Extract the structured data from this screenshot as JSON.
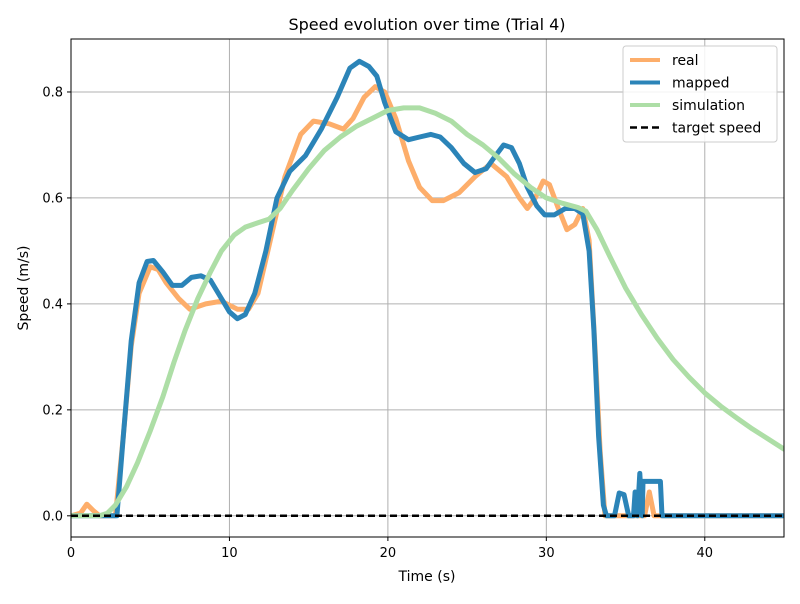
{
  "chart_data": {
    "type": "line",
    "title": "Speed evolution over time (Trial 4)",
    "xlabel": "Time (s)",
    "ylabel": "Speed (m/s)",
    "xlim": [
      0,
      45
    ],
    "ylim": [
      -0.04,
      0.9
    ],
    "x_ticks": [
      0,
      10,
      20,
      30,
      40
    ],
    "y_ticks": [
      0.0,
      0.2,
      0.4,
      0.6,
      0.8
    ],
    "x_tick_labels": [
      "0",
      "10",
      "20",
      "30",
      "40"
    ],
    "y_tick_labels": [
      "0.0",
      "0.2",
      "0.4",
      "0.6",
      "0.8"
    ],
    "grid": true,
    "legend_position": "top-right",
    "series": [
      {
        "name": "real",
        "color": "#fdae6b",
        "points": [
          [
            0,
            0
          ],
          [
            0.6,
            0.005
          ],
          [
            1.0,
            0.022
          ],
          [
            1.4,
            0.01
          ],
          [
            1.8,
            0.0
          ],
          [
            2.8,
            0.0
          ],
          [
            3.3,
            0.15
          ],
          [
            3.8,
            0.32
          ],
          [
            4.3,
            0.42
          ],
          [
            5.0,
            0.47
          ],
          [
            5.5,
            0.465
          ],
          [
            6.0,
            0.44
          ],
          [
            6.8,
            0.41
          ],
          [
            7.5,
            0.39
          ],
          [
            8.5,
            0.4
          ],
          [
            9.5,
            0.405
          ],
          [
            10.5,
            0.39
          ],
          [
            11.2,
            0.39
          ],
          [
            11.8,
            0.42
          ],
          [
            12.5,
            0.51
          ],
          [
            13.5,
            0.64
          ],
          [
            14.5,
            0.72
          ],
          [
            15.3,
            0.745
          ],
          [
            16.3,
            0.74
          ],
          [
            17.2,
            0.73
          ],
          [
            17.8,
            0.75
          ],
          [
            18.5,
            0.79
          ],
          [
            19.2,
            0.81
          ],
          [
            19.8,
            0.8
          ],
          [
            20.5,
            0.75
          ],
          [
            21.3,
            0.67
          ],
          [
            22.0,
            0.62
          ],
          [
            22.8,
            0.595
          ],
          [
            23.5,
            0.595
          ],
          [
            24.5,
            0.61
          ],
          [
            25.5,
            0.64
          ],
          [
            26.5,
            0.665
          ],
          [
            27.5,
            0.64
          ],
          [
            28.3,
            0.6
          ],
          [
            28.8,
            0.58
          ],
          [
            29.3,
            0.6
          ],
          [
            29.8,
            0.632
          ],
          [
            30.2,
            0.625
          ],
          [
            30.7,
            0.585
          ],
          [
            31.3,
            0.54
          ],
          [
            31.8,
            0.55
          ],
          [
            32.3,
            0.58
          ],
          [
            32.7,
            0.52
          ],
          [
            33.1,
            0.3
          ],
          [
            33.4,
            0.12
          ],
          [
            33.7,
            0.0
          ],
          [
            36.2,
            0.0
          ],
          [
            36.5,
            0.045
          ],
          [
            36.8,
            0.0
          ],
          [
            45,
            0.0
          ]
        ]
      },
      {
        "name": "mapped",
        "color": "#2b84b8",
        "points": [
          [
            0,
            0
          ],
          [
            2.9,
            0.0
          ],
          [
            3.3,
            0.15
          ],
          [
            3.8,
            0.33
          ],
          [
            4.3,
            0.44
          ],
          [
            4.8,
            0.48
          ],
          [
            5.2,
            0.482
          ],
          [
            5.8,
            0.46
          ],
          [
            6.4,
            0.435
          ],
          [
            7.0,
            0.435
          ],
          [
            7.6,
            0.45
          ],
          [
            8.2,
            0.453
          ],
          [
            8.8,
            0.445
          ],
          [
            9.5,
            0.41
          ],
          [
            10.0,
            0.385
          ],
          [
            10.5,
            0.372
          ],
          [
            11.0,
            0.38
          ],
          [
            11.6,
            0.42
          ],
          [
            12.3,
            0.5
          ],
          [
            13.0,
            0.6
          ],
          [
            13.8,
            0.65
          ],
          [
            14.8,
            0.68
          ],
          [
            15.8,
            0.73
          ],
          [
            16.8,
            0.79
          ],
          [
            17.6,
            0.845
          ],
          [
            18.2,
            0.858
          ],
          [
            18.8,
            0.848
          ],
          [
            19.3,
            0.83
          ],
          [
            19.8,
            0.78
          ],
          [
            20.5,
            0.725
          ],
          [
            21.3,
            0.71
          ],
          [
            22.0,
            0.715
          ],
          [
            22.7,
            0.72
          ],
          [
            23.3,
            0.715
          ],
          [
            24.0,
            0.695
          ],
          [
            24.8,
            0.665
          ],
          [
            25.5,
            0.648
          ],
          [
            26.2,
            0.655
          ],
          [
            26.8,
            0.68
          ],
          [
            27.3,
            0.7
          ],
          [
            27.8,
            0.695
          ],
          [
            28.3,
            0.665
          ],
          [
            28.8,
            0.62
          ],
          [
            29.4,
            0.585
          ],
          [
            29.9,
            0.568
          ],
          [
            30.5,
            0.568
          ],
          [
            31.2,
            0.58
          ],
          [
            31.8,
            0.58
          ],
          [
            32.3,
            0.57
          ],
          [
            32.7,
            0.5
          ],
          [
            33.0,
            0.35
          ],
          [
            33.3,
            0.15
          ],
          [
            33.6,
            0.02
          ],
          [
            33.8,
            0.0
          ],
          [
            34.3,
            0.0
          ],
          [
            34.6,
            0.043
          ],
          [
            34.9,
            0.04
          ],
          [
            35.2,
            0.0
          ],
          [
            35.5,
            0.0
          ],
          [
            35.6,
            0.045
          ],
          [
            35.75,
            0.0
          ],
          [
            35.9,
            0.08
          ],
          [
            36.05,
            0.0
          ],
          [
            36.1,
            0.065
          ],
          [
            37.2,
            0.065
          ],
          [
            37.3,
            0.0
          ],
          [
            45,
            0.0
          ]
        ]
      },
      {
        "name": "simulation",
        "color": "#addea6",
        "points": [
          [
            0,
            0
          ],
          [
            1.8,
            0.0
          ],
          [
            2.3,
            0.005
          ],
          [
            2.8,
            0.02
          ],
          [
            3.5,
            0.055
          ],
          [
            4.2,
            0.1
          ],
          [
            5.0,
            0.16
          ],
          [
            5.8,
            0.225
          ],
          [
            6.5,
            0.29
          ],
          [
            7.2,
            0.35
          ],
          [
            8.0,
            0.41
          ],
          [
            8.8,
            0.46
          ],
          [
            9.5,
            0.5
          ],
          [
            10.3,
            0.53
          ],
          [
            11.0,
            0.545
          ],
          [
            11.8,
            0.553
          ],
          [
            12.5,
            0.56
          ],
          [
            13.2,
            0.58
          ],
          [
            14.0,
            0.615
          ],
          [
            15.0,
            0.655
          ],
          [
            16.0,
            0.69
          ],
          [
            17.0,
            0.715
          ],
          [
            18.0,
            0.735
          ],
          [
            19.0,
            0.75
          ],
          [
            20.0,
            0.765
          ],
          [
            21.0,
            0.77
          ],
          [
            22.0,
            0.77
          ],
          [
            23.0,
            0.76
          ],
          [
            24.0,
            0.745
          ],
          [
            25.0,
            0.72
          ],
          [
            26.0,
            0.7
          ],
          [
            27.0,
            0.675
          ],
          [
            28.0,
            0.645
          ],
          [
            29.0,
            0.62
          ],
          [
            30.0,
            0.6
          ],
          [
            31.0,
            0.59
          ],
          [
            32.0,
            0.582
          ],
          [
            32.5,
            0.575
          ],
          [
            33.2,
            0.54
          ],
          [
            34.0,
            0.49
          ],
          [
            35.0,
            0.43
          ],
          [
            36.0,
            0.38
          ],
          [
            37.0,
            0.335
          ],
          [
            38.0,
            0.295
          ],
          [
            39.0,
            0.262
          ],
          [
            40.0,
            0.232
          ],
          [
            41.0,
            0.207
          ],
          [
            42.0,
            0.185
          ],
          [
            43.0,
            0.164
          ],
          [
            44.0,
            0.145
          ],
          [
            45.0,
            0.126
          ]
        ]
      },
      {
        "name": "target speed",
        "color": "#000000",
        "dashed": true,
        "points": [
          [
            0,
            0
          ],
          [
            45,
            0
          ]
        ]
      }
    ]
  }
}
